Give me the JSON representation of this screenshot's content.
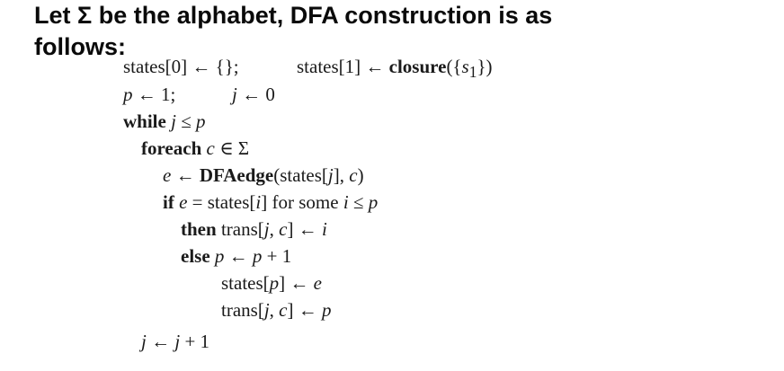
{
  "heading": {
    "line1": "Let Σ be the alphabet, DFA construction is as",
    "line2": "follows:"
  },
  "algorithm": {
    "l1a": "states[0] ← {};",
    "l1b_pre": "states[1] ← ",
    "l1b_kw": "closure",
    "l1b_pre2": "({",
    "l1b_var": "s",
    "l1b_sub": "1",
    "l1b_post": "})",
    "l2a_var": "p",
    "l2a_rest": " ← 1;",
    "l2b_var": "j",
    "l2b_rest": " ← 0",
    "l3_kw": "while",
    "l3_rest_var": " j",
    "l3_op": " ≤ ",
    "l3_var2": "p",
    "l4_kw": "foreach",
    "l4_var": " c",
    "l4_rest": " ∈ Σ",
    "l5_var": "e",
    "l5_arrow": " ← ",
    "l5_kw": "DFAedge",
    "l5_a": "(states[",
    "l5_j": "j",
    "l5_b": "], ",
    "l5_c": "c",
    "l5_d": ")",
    "l6_kw": "if",
    "l6_e": " e",
    "l6_a": " = states[",
    "l6_i": "i",
    "l6_b": "] for some ",
    "l6_i2": "i",
    "l6_c": " ≤ ",
    "l6_p": "p",
    "l7_kw": "then",
    "l7_a": " trans[",
    "l7_j": "j",
    "l7_b": ", ",
    "l7_c": "c",
    "l7_d": "] ← ",
    "l7_i": "i",
    "l8_kw": "else",
    "l8_p": " p",
    "l8_a": " ← ",
    "l8_p2": "p",
    "l8_b": " + 1",
    "l9_a": "states[",
    "l9_p": "p",
    "l9_b": "] ← ",
    "l9_e": "e",
    "l10_a": "trans[",
    "l10_j": "j",
    "l10_b": ", ",
    "l10_c": "c",
    "l10_d": "] ← ",
    "l10_p": "p",
    "l11_j": "j",
    "l11_a": " ← ",
    "l11_j2": "j",
    "l11_b": " + 1"
  }
}
